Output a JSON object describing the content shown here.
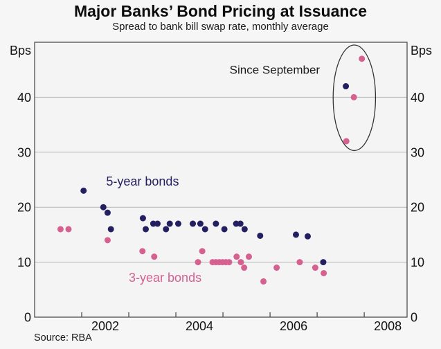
{
  "chart_data": {
    "type": "scatter",
    "title": "Major Banks’ Bond Pricing at Issuance",
    "subtitle": "Spread to bank bill swap rate, monthly average",
    "source": "Source: RBA",
    "y_unit_left": "Bps",
    "y_unit_right": "Bps",
    "xlim": [
      2001,
      2008.91
    ],
    "ylim": [
      0,
      50
    ],
    "x_tick_years": [
      2002,
      2003,
      2004,
      2005,
      2006,
      2007,
      2008
    ],
    "x_axis_labels": [
      {
        "text": "2002",
        "center_year": 2002.5
      },
      {
        "text": "2004",
        "center_year": 2004.5
      },
      {
        "text": "2006",
        "center_year": 2006.5
      },
      {
        "text": "2008",
        "center_year": 2008.5
      }
    ],
    "y_gridline_values": [
      10,
      20,
      30,
      40
    ],
    "y_tick_labels": [
      {
        "text": "0",
        "value": 0
      },
      {
        "text": "10",
        "value": 10
      },
      {
        "text": "20",
        "value": 20
      },
      {
        "text": "30",
        "value": 30
      },
      {
        "text": "40",
        "value": 40
      }
    ],
    "grid": true,
    "legend_position": "inline-labels",
    "series": [
      {
        "name": "5-year bonds",
        "color": "#241f60",
        "label": {
          "text": "5-year bonds",
          "year": 2002.52,
          "bps": 24.7
        },
        "points": [
          [
            2002.04,
            23
          ],
          [
            2002.46,
            20
          ],
          [
            2002.55,
            19
          ],
          [
            2002.62,
            16
          ],
          [
            2003.3,
            18
          ],
          [
            2003.36,
            16
          ],
          [
            2003.52,
            17
          ],
          [
            2003.61,
            17
          ],
          [
            2003.79,
            16
          ],
          [
            2003.87,
            17
          ],
          [
            2004.05,
            17
          ],
          [
            2004.36,
            17
          ],
          [
            2004.52,
            17
          ],
          [
            2004.62,
            16
          ],
          [
            2004.85,
            17
          ],
          [
            2005.03,
            16
          ],
          [
            2005.28,
            17
          ],
          [
            2005.37,
            17
          ],
          [
            2005.46,
            16
          ],
          [
            2005.79,
            14.8
          ],
          [
            2006.55,
            15
          ],
          [
            2006.8,
            14.7
          ],
          [
            2007.13,
            10
          ],
          [
            2007.61,
            42
          ]
        ]
      },
      {
        "name": "3-year bonds",
        "color": "#d6608f",
        "label": {
          "text": "3-year bonds",
          "year": 2003.0,
          "bps": 7.2
        },
        "points": [
          [
            2001.55,
            16
          ],
          [
            2001.72,
            16
          ],
          [
            2002.55,
            14
          ],
          [
            2003.29,
            12
          ],
          [
            2003.54,
            11
          ],
          [
            2004.47,
            10
          ],
          [
            2004.56,
            12
          ],
          [
            2004.78,
            10
          ],
          [
            2004.85,
            10
          ],
          [
            2004.92,
            10
          ],
          [
            2004.99,
            10
          ],
          [
            2005.06,
            10
          ],
          [
            2005.13,
            10
          ],
          [
            2005.29,
            11
          ],
          [
            2005.38,
            10
          ],
          [
            2005.45,
            9
          ],
          [
            2005.55,
            11
          ],
          [
            2005.86,
            6.5
          ],
          [
            2006.14,
            9
          ],
          [
            2006.63,
            10
          ],
          [
            2006.96,
            9
          ],
          [
            2007.14,
            8
          ],
          [
            2007.62,
            32
          ],
          [
            2007.78,
            40
          ],
          [
            2007.95,
            47
          ]
        ]
      }
    ],
    "annotation": {
      "text": "Since September",
      "text_pos": {
        "year": 2006.1,
        "bps": 45
      },
      "ellipse": {
        "center_year": 2007.79,
        "center_bps": 39.9,
        "rx_years": 0.45,
        "ry_bps": 9.6
      }
    },
    "colors": {
      "page_bg": "#f6f6f7",
      "plot_bg": "#f4f4f5",
      "grid": "#b3b3b3",
      "frame": "#4d4d4d",
      "axis_text": "#141414",
      "annotation_text": "#1a1a1a",
      "ellipse_stroke": "#333333"
    },
    "marker_radius": 4.5
  }
}
